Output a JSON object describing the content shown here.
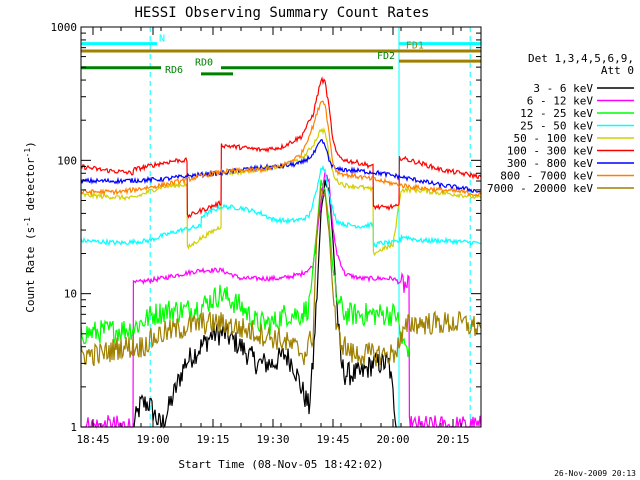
{
  "chart_data": {
    "type": "line",
    "title": "HESSI Observing Summary Count Rates",
    "xlabel": "Start Time (08-Nov-05 18:42:02)",
    "ylabel_main": "Count Rate (s",
    "ylabel_sup1": "-1",
    "ylabel_mid": " detector",
    "ylabel_sup2": "-1",
    "ylabel_end": ")",
    "yscale": "log",
    "ylim": [
      1,
      1000
    ],
    "xlim_minutes": [
      0,
      100
    ],
    "x_ticks": [
      {
        "minute": 3,
        "label": "18:45"
      },
      {
        "minute": 18,
        "label": "19:00"
      },
      {
        "minute": 33,
        "label": "19:15"
      },
      {
        "minute": 48,
        "label": "19:30"
      },
      {
        "minute": 63,
        "label": "19:45"
      },
      {
        "minute": 78,
        "label": "20:00"
      },
      {
        "minute": 93,
        "label": "20:15"
      }
    ],
    "y_ticks": [
      {
        "value": 1,
        "label": "1"
      },
      {
        "value": 10,
        "label": "10"
      },
      {
        "value": 100,
        "label": "100"
      },
      {
        "value": 1000,
        "label": "1000"
      }
    ],
    "legend_header": [
      "Det 1,3,4,5,6,9,",
      "Att 0"
    ],
    "legend_position": "right",
    "date_stamp": "26-Nov-2009 20:13",
    "flags": [
      {
        "label": "N",
        "color": "#00ffff",
        "segments": [
          [
            0,
            19
          ],
          [
            79.5,
            100
          ]
        ],
        "level": 750
      },
      {
        "label": "FD1",
        "color": "#a08000",
        "segments": [
          [
            0,
            79.5
          ],
          [
            79.5,
            100
          ]
        ],
        "level": 660
      },
      {
        "label": "FD2",
        "color": "#a08000",
        "segments": [
          [
            79.5,
            100
          ]
        ],
        "level": 555
      },
      {
        "label": "RD0",
        "color": "#008000",
        "segments": [
          [
            0,
            20
          ],
          [
            35,
            73
          ],
          [
            73,
            78
          ]
        ],
        "level": 495
      },
      {
        "label": "RD6",
        "color": "#008000",
        "segments": [
          [
            30,
            38
          ]
        ],
        "level": 445
      }
    ],
    "flag_labels": [
      {
        "text": "N",
        "minute": 19.5,
        "value": 780,
        "color": "#00ffff"
      },
      {
        "text": "FD1",
        "minute": 81.2,
        "value": 690,
        "color": "#a08000"
      },
      {
        "text": "FD2",
        "minute": 74.0,
        "value": 575,
        "color": "#008000"
      },
      {
        "text": "RD0",
        "minute": 28.5,
        "value": 515,
        "color": "#008000"
      },
      {
        "text": "RD6",
        "minute": 21.0,
        "value": 450,
        "color": "#008000"
      }
    ],
    "vlines": [
      {
        "minute": 17.3,
        "color": "#00ffff",
        "style": "dashed"
      },
      {
        "minute": 79.5,
        "color": "#00ffff",
        "style": "solid"
      },
      {
        "minute": 97.3,
        "color": "#00ffff",
        "style": "dashed"
      }
    ],
    "series": [
      {
        "name": "3 - 6 keV",
        "color": "#000000",
        "x": [
          13,
          15,
          17,
          20,
          22,
          26,
          30,
          33,
          36,
          40,
          44,
          48,
          51,
          53,
          55,
          57,
          58,
          59,
          60,
          61,
          62,
          63,
          64,
          65,
          66,
          67,
          68,
          70,
          73,
          75,
          77,
          79
        ],
        "y": [
          1,
          1.5,
          1.5,
          1,
          1.4,
          3,
          4,
          5,
          5,
          4,
          3,
          3,
          3.5,
          3,
          2,
          1.4,
          3,
          10,
          40,
          70,
          60,
          25,
          8,
          3,
          2.5,
          2.5,
          2.5,
          2.5,
          3,
          3,
          3,
          1
        ]
      },
      {
        "name": "6 - 12 keV",
        "color": "#ff00ff",
        "x": [
          0,
          13,
          13.1,
          20,
          25,
          30,
          35,
          40,
          45,
          50,
          55,
          58,
          60,
          61,
          62,
          63,
          64,
          66,
          70,
          75,
          78,
          80,
          82,
          82.1,
          83,
          84,
          100
        ],
        "y": [
          1,
          1,
          12,
          13,
          14,
          15,
          15,
          13,
          13,
          13,
          14,
          16,
          50,
          80,
          70,
          30,
          20,
          14,
          13,
          13,
          13,
          12,
          11,
          1,
          1,
          1,
          1
        ]
      },
      {
        "name": "12 - 25 keV",
        "color": "#00ff00",
        "x": [
          0,
          13,
          18,
          22,
          26,
          30,
          35,
          40,
          44,
          48,
          51,
          55,
          57,
          59,
          60,
          61,
          62,
          63,
          64,
          66,
          68,
          72,
          75,
          79,
          80,
          81,
          82
        ],
        "y": [
          5,
          5.5,
          7,
          7.5,
          7.5,
          8,
          10,
          8,
          6,
          6,
          7,
          7,
          8,
          30,
          70,
          60,
          35,
          15,
          9,
          7,
          7,
          7,
          7,
          7,
          4.5,
          4,
          4
        ]
      },
      {
        "name": "25 - 50 keV",
        "color": "#00ffff",
        "x": [
          0,
          10,
          17,
          20,
          25,
          30,
          30.1,
          35,
          40,
          45,
          48,
          52,
          55,
          57,
          59,
          60,
          61,
          62,
          63,
          64,
          66,
          70,
          73,
          73.1,
          75,
          78,
          80,
          80.1,
          85,
          90,
          100
        ],
        "y": [
          25,
          24,
          25,
          27,
          30,
          32,
          38,
          45,
          44,
          40,
          36,
          35,
          36,
          38,
          60,
          90,
          85,
          55,
          42,
          35,
          33,
          32,
          33,
          23,
          24,
          24,
          25,
          27,
          25,
          25,
          24
        ]
      },
      {
        "name": "50 - 100 keV",
        "color": "#d0d000",
        "x": [
          0,
          13,
          18,
          20,
          24,
          26.5,
          26.6,
          30,
          35,
          35.1,
          40,
          45,
          50,
          55,
          58,
          60,
          61,
          62,
          63,
          64,
          66,
          70,
          73,
          73.1,
          76,
          78,
          80,
          83,
          88,
          95,
          100
        ],
        "y": [
          55,
          52,
          60,
          63,
          65,
          66,
          22,
          26,
          32,
          80,
          82,
          86,
          90,
          100,
          130,
          170,
          165,
          110,
          80,
          70,
          65,
          63,
          60,
          20,
          22,
          23,
          60,
          60,
          58,
          55,
          52
        ]
      },
      {
        "name": "100 - 300 keV",
        "color": "#ff0000",
        "x": [
          0,
          5,
          10,
          13,
          13.1,
          20,
          24,
          26.5,
          26.6,
          30,
          35,
          35.1,
          40,
          45,
          50,
          55,
          58,
          60,
          61,
          62,
          63,
          64,
          66,
          70,
          73,
          73.1,
          76,
          78,
          79.5,
          79.6,
          85,
          90,
          95,
          100
        ],
        "y": [
          90,
          85,
          82,
          80,
          85,
          95,
          100,
          100,
          38,
          42,
          48,
          130,
          125,
          120,
          125,
          150,
          220,
          400,
          390,
          250,
          140,
          110,
          100,
          95,
          90,
          45,
          44,
          45,
          45,
          105,
          95,
          85,
          80,
          75
        ]
      },
      {
        "name": "300 - 800 keV",
        "color": "#0000ff",
        "x": [
          0,
          10,
          20,
          25,
          30,
          35,
          40,
          45,
          50,
          55,
          58,
          60,
          61,
          62,
          63,
          64,
          66,
          70,
          75,
          80,
          85,
          90,
          95,
          100
        ],
        "y": [
          70,
          70,
          72,
          75,
          78,
          80,
          85,
          88,
          90,
          95,
          110,
          140,
          130,
          100,
          90,
          85,
          85,
          83,
          80,
          75,
          70,
          65,
          62,
          58
        ]
      },
      {
        "name": "800 - 7000 keV",
        "color": "#ff8000",
        "x": [
          0,
          10,
          20,
          25,
          30,
          35,
          40,
          45,
          50,
          55,
          58,
          60,
          61,
          62,
          63,
          64,
          66,
          70,
          75,
          80,
          85,
          90,
          95,
          100
        ],
        "y": [
          58,
          58,
          65,
          70,
          76,
          82,
          84,
          85,
          90,
          110,
          180,
          280,
          270,
          160,
          95,
          82,
          78,
          75,
          70,
          65,
          62,
          60,
          58,
          55
        ]
      },
      {
        "name": "7000 - 20000 keV",
        "color": "#a08000",
        "x": [
          0,
          5,
          10,
          15,
          20,
          25,
          30,
          35,
          40,
          45,
          50,
          53,
          56,
          58,
          59,
          60,
          61,
          62,
          63,
          64,
          66,
          68,
          72,
          75,
          78,
          80,
          82,
          85,
          90,
          95,
          100
        ],
        "y": [
          3.5,
          3.5,
          4,
          4,
          5,
          5.5,
          6,
          6,
          5.5,
          5,
          4.5,
          4,
          3.5,
          5,
          30,
          60,
          55,
          30,
          10,
          5,
          4,
          3.5,
          3.5,
          3.5,
          3.5,
          4.5,
          6,
          6,
          6,
          6,
          5.5
        ]
      }
    ]
  }
}
